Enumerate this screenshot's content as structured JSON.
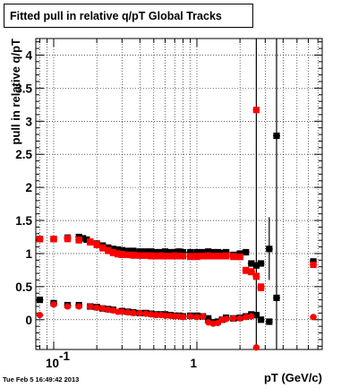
{
  "chart_data": {
    "type": "scatter",
    "title": "Fitted pull in relative q/pT  Global Tracks",
    "xlabel": "pT (GeV/c)",
    "ylabel": "pull in relative q/pT",
    "x_scale": "log",
    "xlim": [
      0.075,
      7.5
    ],
    "ylim": [
      -0.45,
      4.25
    ],
    "grid": true,
    "x_ticks": [
      {
        "label": "10",
        "exp": "-1",
        "value": 0.1
      },
      {
        "label": "1",
        "value": 1
      }
    ],
    "y_ticks": [
      {
        "label": "0",
        "value": 0
      },
      {
        "label": "0.5",
        "value": 0.5
      },
      {
        "label": "1",
        "value": 1
      },
      {
        "label": "1.5",
        "value": 1.5
      },
      {
        "label": "2",
        "value": 2
      },
      {
        "label": "2.5",
        "value": 2.5
      },
      {
        "label": "3",
        "value": 3
      },
      {
        "label": "3.5",
        "value": 3.5
      },
      {
        "label": "4",
        "value": 4
      }
    ],
    "series": [
      {
        "color": "#000000",
        "marker": "square",
        "x": [
          0.08,
          0.1,
          0.125,
          0.15,
          0.16,
          0.17,
          0.18,
          0.2,
          0.22,
          0.24,
          0.26,
          0.28,
          0.3,
          0.33,
          0.36,
          0.4,
          0.44,
          0.48,
          0.52,
          0.56,
          0.6,
          0.65,
          0.7,
          0.75,
          0.8,
          0.9,
          1.0,
          1.1,
          1.2,
          1.3,
          1.4,
          1.5,
          1.6,
          1.8,
          2.0,
          2.2,
          2.4,
          2.6,
          2.8,
          3.2,
          3.6,
          6.5
        ],
        "y": [
          1.22,
          1.22,
          1.24,
          1.25,
          1.23,
          1.21,
          1.18,
          1.15,
          1.12,
          1.09,
          1.07,
          1.06,
          1.05,
          1.04,
          1.04,
          1.03,
          1.03,
          1.03,
          1.02,
          1.02,
          1.03,
          1.02,
          1.02,
          1.03,
          1.02,
          1.02,
          1.02,
          1.02,
          1.03,
          1.02,
          1.02,
          1.01,
          1.02,
          0.98,
          1.0,
          1.02,
          0.85,
          0.82,
          0.85,
          1.07,
          2.78,
          0.88
        ]
      },
      {
        "color": "#000000",
        "marker": "square",
        "x": [
          0.08,
          0.1,
          0.125,
          0.15,
          0.18,
          0.2,
          0.22,
          0.24,
          0.26,
          0.3,
          0.33,
          0.36,
          0.4,
          0.44,
          0.48,
          0.52,
          0.56,
          0.6,
          0.65,
          0.7,
          0.75,
          0.8,
          0.9,
          1.0,
          1.1,
          1.2,
          1.3,
          1.4,
          1.5,
          1.6,
          1.8,
          2.0,
          2.2,
          2.4,
          2.6,
          2.8,
          3.2,
          3.6
        ],
        "y": [
          0.3,
          0.25,
          0.22,
          0.22,
          0.2,
          0.19,
          0.17,
          0.16,
          0.15,
          0.13,
          0.12,
          0.11,
          0.1,
          0.1,
          0.09,
          0.08,
          0.08,
          0.08,
          0.07,
          0.06,
          0.06,
          0.05,
          0.06,
          0.06,
          0.05,
          0.02,
          -0.04,
          -0.03,
          0.0,
          0.03,
          0.02,
          0.03,
          0.05,
          0.08,
          0.07,
          0.0,
          -0.03,
          0.33
        ]
      },
      {
        "color": "#ff0000",
        "marker": "square",
        "x": [
          0.08,
          0.1,
          0.125,
          0.15,
          0.18,
          0.2,
          0.22,
          0.24,
          0.26,
          0.28,
          0.3,
          0.33,
          0.36,
          0.4,
          0.44,
          0.48,
          0.52,
          0.56,
          0.6,
          0.65,
          0.7,
          0.75,
          0.8,
          0.9,
          1.0,
          1.1,
          1.2,
          1.3,
          1.4,
          1.5,
          1.6,
          1.8,
          2.0,
          2.2,
          2.4,
          2.6,
          2.8,
          6.5
        ],
        "y": [
          1.22,
          1.22,
          1.22,
          1.2,
          1.17,
          1.13,
          1.08,
          1.04,
          1.01,
          0.99,
          0.98,
          0.98,
          0.97,
          0.97,
          0.97,
          0.97,
          0.96,
          0.97,
          0.96,
          0.96,
          0.97,
          0.96,
          0.96,
          0.96,
          0.96,
          0.96,
          0.97,
          0.96,
          0.96,
          0.96,
          0.96,
          0.95,
          0.95,
          0.74,
          0.73,
          0.65,
          0.48,
          0.83
        ]
      },
      {
        "color": "#ff0000",
        "marker": "square",
        "x": [
          0.08,
          0.1,
          0.125,
          0.15,
          0.18,
          0.2,
          0.22,
          0.24,
          0.26,
          0.28,
          0.3,
          0.33,
          0.36,
          0.4,
          0.44,
          0.48,
          0.52,
          0.56,
          0.6,
          0.65,
          0.7,
          0.75,
          0.8,
          0.9,
          1.0,
          1.1,
          1.2,
          1.3,
          1.4,
          1.5,
          1.6,
          1.8,
          2.0,
          2.2,
          2.4,
          2.6,
          2.8
        ],
        "y": [
          1.22,
          1.22,
          1.23,
          1.21,
          1.18,
          1.14,
          1.09,
          1.05,
          1.02,
          1.0,
          0.99,
          0.98,
          0.98,
          0.97,
          0.97,
          0.96,
          0.96,
          0.96,
          0.96,
          0.96,
          0.96,
          0.96,
          0.96,
          0.95,
          0.95,
          0.96,
          0.96,
          0.96,
          0.96,
          0.96,
          0.97,
          0.96,
          0.95,
          0.75,
          0.72,
          0.66,
          0.5
        ]
      },
      {
        "color": "#ff0000",
        "marker": "circle",
        "x": [
          0.08,
          0.1,
          0.125,
          0.15,
          0.18,
          0.2,
          0.22,
          0.24,
          0.26,
          0.28,
          0.3,
          0.33,
          0.36,
          0.4,
          0.44,
          0.48,
          0.52,
          0.56,
          0.6,
          0.65,
          0.7,
          0.75,
          0.8,
          0.9,
          1.0,
          1.1,
          1.2,
          1.3,
          1.4,
          1.5,
          1.6,
          1.8,
          2.0,
          2.2,
          2.4,
          2.6,
          6.5
        ],
        "y": [
          0.07,
          0.23,
          0.2,
          0.2,
          0.2,
          0.18,
          0.17,
          0.15,
          0.14,
          0.12,
          0.12,
          0.11,
          0.1,
          0.1,
          0.09,
          0.08,
          0.07,
          0.07,
          0.06,
          0.06,
          0.05,
          0.05,
          0.04,
          0.05,
          0.04,
          0.05,
          -0.04,
          -0.06,
          -0.05,
          0.0,
          0.01,
          0.02,
          0.02,
          0.04,
          0.05,
          -0.42,
          0.04
        ]
      },
      {
        "color": "#ff0000",
        "marker": "square",
        "x": [
          2.6
        ],
        "y": [
          3.17
        ]
      }
    ]
  },
  "footer": {
    "timestamp": "Tue Feb  5 16:49:42 2013"
  }
}
